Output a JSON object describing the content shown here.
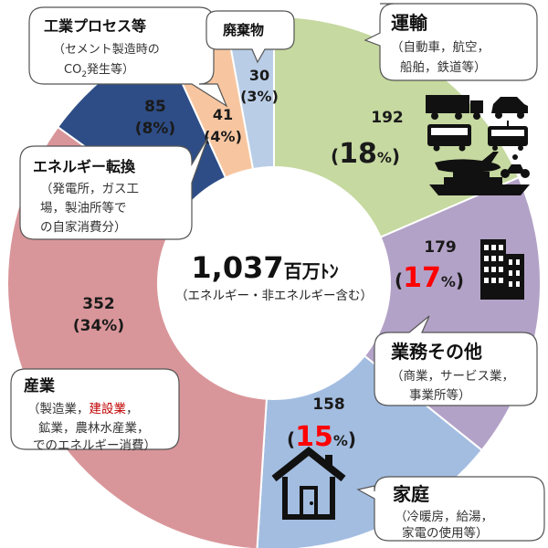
{
  "chart_data": {
    "type": "donut",
    "unit": "百万トン",
    "total": {
      "value": "1,037",
      "unit": "百万ﾄﾝ",
      "note": "（エネルギー・非エネルギー含む）"
    },
    "segments": [
      {
        "key": "transport",
        "label": "運輸",
        "value": 192,
        "percent": 18,
        "color": "#c6d9a0"
      },
      {
        "key": "business",
        "label": "業務その他",
        "value": 179,
        "percent": 17,
        "color": "#b3a2c7"
      },
      {
        "key": "household",
        "label": "家庭",
        "value": 158,
        "percent": 15,
        "color": "#a3bde1"
      },
      {
        "key": "industry",
        "label": "産業",
        "value": 352,
        "percent": 34,
        "color": "#d9969a"
      },
      {
        "key": "energy",
        "label": "エネルギー転換",
        "value": 85,
        "percent": 8,
        "color": "#2e4d86"
      },
      {
        "key": "process",
        "label": "工業プロセス等",
        "value": 41,
        "percent": 4,
        "color": "#f7c6a0"
      },
      {
        "key": "waste",
        "label": "廃棄物",
        "value": 30,
        "percent": 3,
        "color": "#b9cde6"
      }
    ]
  },
  "labels": {
    "transport": {
      "value": "192",
      "percent": "18",
      "pct_sign": "%"
    },
    "business": {
      "value": "179",
      "percent": "17",
      "pct_sign": "%"
    },
    "household": {
      "value": "158",
      "percent": "15",
      "pct_sign": "%"
    },
    "industry": {
      "value": "352",
      "percent": "(34%)"
    },
    "energy": {
      "value": "85",
      "percent": "(8%)"
    },
    "process": {
      "value": "41",
      "percent": "(4%)"
    },
    "waste": {
      "value": "30",
      "percent": "(3%)"
    }
  },
  "callouts": {
    "process": {
      "title": "工業プロセス等",
      "lines": [
        "（セメント製造時の",
        "CO",
        "発生等）"
      ]
    },
    "waste": {
      "title": "廃棄物"
    },
    "transport": {
      "title": "運輸",
      "lines": [
        "（自動車，航空，",
        "船舶，鉄道等）"
      ]
    },
    "energy": {
      "title": "エネルギー転換",
      "lines": [
        "（発電所，ガス工",
        "場，製油所等で",
        "の自家消費分）"
      ]
    },
    "business": {
      "title": "業務その他",
      "lines": [
        "（商業，サービス業，",
        "事業所等）"
      ]
    },
    "industry": {
      "title": "産業",
      "lines_pre": "（製造業，",
      "lines_highlight": "建設業",
      "lines_post": "，",
      "lines": [
        "鉱業，農林水産業，",
        "でのエネルギー消費）"
      ]
    },
    "household": {
      "title": "家庭",
      "lines": [
        "（冷暖房，給湯，",
        "家電の使用等）"
      ]
    }
  },
  "colors": {
    "highlight_red": "#ff0000",
    "highlight_dark_red": "#c00000"
  },
  "icons": [
    "truck-icon",
    "car-icon",
    "bus-icon",
    "train-icon",
    "airplane-icon",
    "motorcycle-icon",
    "ship-icon",
    "office-building-icon",
    "house-icon"
  ]
}
